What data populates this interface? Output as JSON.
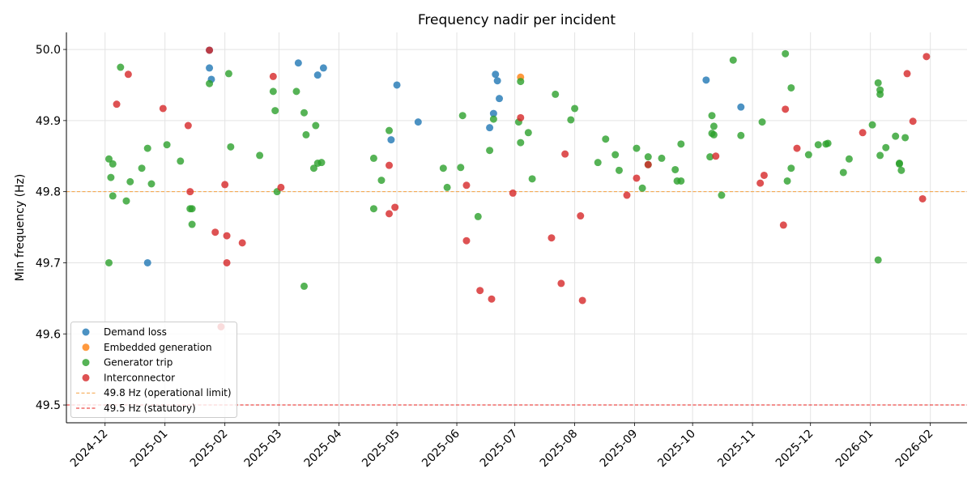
{
  "chart_data": {
    "type": "scatter",
    "title": "Frequency nadir per incident",
    "xlabel": "",
    "ylabel": "Min frequency (Hz)",
    "xlim": [
      "2024-11-11",
      "2026-02-20"
    ],
    "ylim": [
      49.475,
      50.024
    ],
    "grid": true,
    "legend_position": "lower-left",
    "x_ticks": [
      "2024-12",
      "2025-01",
      "2025-02",
      "2025-03",
      "2025-04",
      "2025-05",
      "2025-06",
      "2025-07",
      "2025-08",
      "2025-09",
      "2025-10",
      "2025-11",
      "2025-12",
      "2026-01",
      "2026-02"
    ],
    "y_ticks": [
      "49.5",
      "49.6",
      "49.7",
      "49.8",
      "49.9",
      "50.0"
    ],
    "reference_lines": [
      {
        "name": "49.8 Hz (operational limit)",
        "y": 49.8,
        "color": "#f5a142",
        "style": "dashed"
      },
      {
        "name": "49.5 Hz (statutory)",
        "y": 49.5,
        "color": "#e8201e",
        "style": "dashed"
      }
    ],
    "series": [
      {
        "name": "Demand loss",
        "color": "#1f77b4",
        "points": [
          [
            "2025-01-24",
            49.999
          ],
          [
            "2025-01-24",
            49.974
          ],
          [
            "2025-01-25",
            49.958
          ],
          [
            "2024-12-23",
            49.7
          ],
          [
            "2025-03-11",
            49.981
          ],
          [
            "2025-03-21",
            49.964
          ],
          [
            "2025-03-24",
            49.974
          ],
          [
            "2025-05-01",
            49.95
          ],
          [
            "2025-04-28",
            49.873
          ],
          [
            "2025-05-12",
            49.898
          ],
          [
            "2025-06-21",
            49.965
          ],
          [
            "2025-06-22",
            49.956
          ],
          [
            "2025-06-23",
            49.931
          ],
          [
            "2025-06-20",
            49.91
          ],
          [
            "2025-06-18",
            49.89
          ],
          [
            "2025-10-08",
            49.957
          ],
          [
            "2025-10-26",
            49.919
          ]
        ]
      },
      {
        "name": "Embedded generation",
        "color": "#ff7f0e",
        "points": [
          [
            "2025-07-04",
            49.961
          ]
        ]
      },
      {
        "name": "Generator trip",
        "color": "#2ca02c",
        "points": [
          [
            "2024-12-09",
            49.975
          ],
          [
            "2025-02-03",
            49.966
          ],
          [
            "2025-01-24",
            49.952
          ],
          [
            "2025-02-26",
            49.941
          ],
          [
            "2025-03-10",
            49.941
          ],
          [
            "2025-02-27",
            49.914
          ],
          [
            "2025-03-14",
            49.911
          ],
          [
            "2025-03-20",
            49.893
          ],
          [
            "2025-03-15",
            49.88
          ],
          [
            "2024-12-23",
            49.861
          ],
          [
            "2025-01-02",
            49.866
          ],
          [
            "2025-02-04",
            49.863
          ],
          [
            "2025-02-19",
            49.851
          ],
          [
            "2024-12-03",
            49.846
          ],
          [
            "2024-12-05",
            49.839
          ],
          [
            "2024-12-20",
            49.833
          ],
          [
            "2025-01-09",
            49.843
          ],
          [
            "2025-03-21",
            49.84
          ],
          [
            "2025-03-23",
            49.841
          ],
          [
            "2025-03-19",
            49.833
          ],
          [
            "2024-12-04",
            49.82
          ],
          [
            "2024-12-14",
            49.814
          ],
          [
            "2024-12-25",
            49.811
          ],
          [
            "2025-02-28",
            49.8
          ],
          [
            "2024-12-05",
            49.794
          ],
          [
            "2024-12-12",
            49.787
          ],
          [
            "2025-01-14",
            49.776
          ],
          [
            "2025-01-15",
            49.776
          ],
          [
            "2025-01-15",
            49.754
          ],
          [
            "2024-12-03",
            49.7
          ],
          [
            "2025-03-14",
            49.667
          ],
          [
            "2025-04-27",
            49.886
          ],
          [
            "2025-04-19",
            49.847
          ],
          [
            "2025-04-23",
            49.816
          ],
          [
            "2025-04-19",
            49.776
          ],
          [
            "2025-06-04",
            49.907
          ],
          [
            "2025-05-25",
            49.833
          ],
          [
            "2025-06-03",
            49.834
          ],
          [
            "2025-05-27",
            49.806
          ],
          [
            "2025-06-12",
            49.765
          ],
          [
            "2025-06-20",
            49.902
          ],
          [
            "2025-06-18",
            49.858
          ],
          [
            "2025-07-04",
            49.955
          ],
          [
            "2025-07-03",
            49.898
          ],
          [
            "2025-07-08",
            49.883
          ],
          [
            "2025-07-04",
            49.869
          ],
          [
            "2025-07-10",
            49.818
          ],
          [
            "2025-07-22",
            49.937
          ],
          [
            "2025-08-01",
            49.917
          ],
          [
            "2025-07-30",
            49.901
          ],
          [
            "2025-08-17",
            49.874
          ],
          [
            "2025-08-22",
            49.852
          ],
          [
            "2025-08-13",
            49.841
          ],
          [
            "2025-08-24",
            49.83
          ],
          [
            "2025-09-02",
            49.861
          ],
          [
            "2025-09-08",
            49.849
          ],
          [
            "2025-09-08",
            49.838
          ],
          [
            "2025-09-05",
            49.805
          ],
          [
            "2025-09-15",
            49.847
          ],
          [
            "2025-09-22",
            49.831
          ],
          [
            "2025-09-23",
            49.815
          ],
          [
            "2025-09-25",
            49.815
          ],
          [
            "2025-09-25",
            49.867
          ],
          [
            "2025-10-11",
            49.907
          ],
          [
            "2025-10-12",
            49.892
          ],
          [
            "2025-10-11",
            49.882
          ],
          [
            "2025-10-12",
            49.88
          ],
          [
            "2025-10-10",
            49.849
          ],
          [
            "2025-10-16",
            49.795
          ],
          [
            "2025-10-22",
            49.985
          ],
          [
            "2025-10-26",
            49.879
          ],
          [
            "2025-11-06",
            49.898
          ],
          [
            "2025-11-18",
            49.994
          ],
          [
            "2025-11-21",
            49.946
          ],
          [
            "2025-11-21",
            49.833
          ],
          [
            "2025-11-19",
            49.815
          ],
          [
            "2025-11-30",
            49.852
          ],
          [
            "2025-12-05",
            49.866
          ],
          [
            "2025-12-09",
            49.867
          ],
          [
            "2025-12-10",
            49.868
          ],
          [
            "2025-12-18",
            49.827
          ],
          [
            "2025-12-21",
            49.846
          ],
          [
            "2026-01-02",
            49.894
          ],
          [
            "2026-01-05",
            49.953
          ],
          [
            "2026-01-06",
            49.943
          ],
          [
            "2026-01-06",
            49.937
          ],
          [
            "2026-01-09",
            49.862
          ],
          [
            "2026-01-06",
            49.851
          ],
          [
            "2026-01-14",
            49.878
          ],
          [
            "2026-01-19",
            49.876
          ],
          [
            "2026-01-16",
            49.839
          ],
          [
            "2026-01-16",
            49.84
          ],
          [
            "2026-01-17",
            49.83
          ],
          [
            "2026-01-05",
            49.704
          ]
        ]
      },
      {
        "name": "Interconnector",
        "color": "#d62728",
        "points": [
          [
            "2025-01-24",
            49.999
          ],
          [
            "2024-12-13",
            49.965
          ],
          [
            "2024-12-07",
            49.923
          ],
          [
            "2024-12-31",
            49.917
          ],
          [
            "2025-01-13",
            49.893
          ],
          [
            "2025-02-26",
            49.962
          ],
          [
            "2025-02-01",
            49.81
          ],
          [
            "2025-03-02",
            49.806
          ],
          [
            "2025-01-14",
            49.8
          ],
          [
            "2025-01-27",
            49.743
          ],
          [
            "2025-02-02",
            49.738
          ],
          [
            "2025-02-10",
            49.728
          ],
          [
            "2025-02-02",
            49.7
          ],
          [
            "2025-01-30",
            49.61
          ],
          [
            "2025-04-27",
            49.837
          ],
          [
            "2025-04-30",
            49.778
          ],
          [
            "2025-04-27",
            49.769
          ],
          [
            "2025-06-06",
            49.809
          ],
          [
            "2025-06-06",
            49.731
          ],
          [
            "2025-06-13",
            49.661
          ],
          [
            "2025-06-19",
            49.649
          ],
          [
            "2025-07-04",
            49.904
          ],
          [
            "2025-06-30",
            49.798
          ],
          [
            "2025-07-27",
            49.853
          ],
          [
            "2025-08-04",
            49.766
          ],
          [
            "2025-07-20",
            49.735
          ],
          [
            "2025-07-25",
            49.671
          ],
          [
            "2025-08-05",
            49.647
          ],
          [
            "2025-09-02",
            49.819
          ],
          [
            "2025-08-28",
            49.795
          ],
          [
            "2025-09-08",
            49.838
          ],
          [
            "2025-10-13",
            49.85
          ],
          [
            "2025-11-18",
            49.916
          ],
          [
            "2025-11-07",
            49.823
          ],
          [
            "2025-11-05",
            49.812
          ],
          [
            "2025-11-17",
            49.753
          ],
          [
            "2025-11-24",
            49.861
          ],
          [
            "2025-12-28",
            49.883
          ],
          [
            "2026-01-20",
            49.966
          ],
          [
            "2026-01-30",
            49.99
          ],
          [
            "2026-01-23",
            49.899
          ],
          [
            "2026-01-28",
            49.79
          ]
        ]
      }
    ]
  }
}
